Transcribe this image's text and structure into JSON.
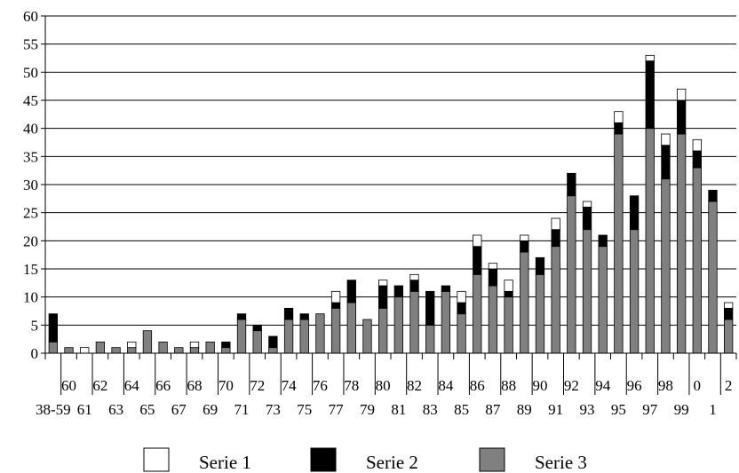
{
  "chart_data": {
    "type": "bar",
    "stacked": true,
    "title": "",
    "xlabel": "",
    "ylabel": "",
    "ylim": [
      0,
      60
    ],
    "yticks": [
      0,
      5,
      10,
      15,
      20,
      25,
      30,
      35,
      40,
      45,
      50,
      55,
      60
    ],
    "grid": "horizontal",
    "legend_position": "bottom",
    "categories": [
      "38-59",
      "60",
      "61",
      "62",
      "63",
      "64",
      "65",
      "66",
      "67",
      "68",
      "69",
      "70",
      "71",
      "72",
      "73",
      "74",
      "75",
      "76",
      "77",
      "78",
      "79",
      "80",
      "81",
      "82",
      "83",
      "84",
      "85",
      "86",
      "87",
      "88",
      "89",
      "90",
      "91",
      "92",
      "93",
      "94",
      "95",
      "96",
      "97",
      "98",
      "99",
      "0",
      "1",
      "2"
    ],
    "series": [
      {
        "name": "Serie 3",
        "color": "#808080",
        "values": [
          2,
          1,
          0,
          2,
          1,
          1,
          4,
          2,
          1,
          1,
          2,
          1,
          6,
          4,
          1,
          6,
          6,
          7,
          8,
          9,
          6,
          8,
          10,
          11,
          5,
          11,
          7,
          14,
          12,
          10,
          18,
          14,
          19,
          28,
          22,
          19,
          39,
          22,
          40,
          31,
          39,
          33,
          27,
          6
        ]
      },
      {
        "name": "Serie 2",
        "color": "#000000",
        "values": [
          5,
          0,
          0,
          0,
          0,
          0,
          0,
          0,
          0,
          0,
          0,
          1,
          1,
          1,
          2,
          2,
          1,
          0,
          1,
          4,
          0,
          4,
          2,
          2,
          6,
          1,
          2,
          5,
          3,
          1,
          2,
          3,
          3,
          4,
          4,
          2,
          2,
          6,
          12,
          6,
          6,
          3,
          2,
          2
        ]
      },
      {
        "name": "Serie 1",
        "color": "#ffffff",
        "values": [
          0,
          0,
          1,
          0,
          0,
          1,
          0,
          0,
          0,
          1,
          0,
          0,
          0,
          0,
          0,
          0,
          0,
          0,
          2,
          0,
          0,
          1,
          0,
          1,
          0,
          0,
          2,
          2,
          1,
          2,
          1,
          0,
          2,
          0,
          1,
          0,
          2,
          0,
          1,
          2,
          2,
          2,
          0,
          1
        ]
      }
    ],
    "legend": [
      {
        "name": "Serie 1",
        "color": "#ffffff"
      },
      {
        "name": "Serie 2",
        "color": "#000000"
      },
      {
        "name": "Serie 3",
        "color": "#808080"
      }
    ]
  }
}
